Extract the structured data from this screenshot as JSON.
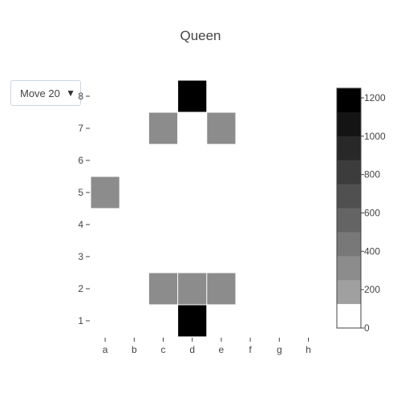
{
  "title": "Queen",
  "menu": {
    "selected": "Move 20",
    "arrow_icon": "triangle-down-icon"
  },
  "chart_data": {
    "type": "heatmap",
    "title": "Queen",
    "x": [
      "a",
      "b",
      "c",
      "d",
      "e",
      "f",
      "g",
      "h"
    ],
    "y": [
      "1",
      "2",
      "3",
      "4",
      "5",
      "6",
      "7",
      "8"
    ],
    "z": [
      [
        0,
        0,
        0,
        1250,
        0,
        0,
        0,
        0
      ],
      [
        0,
        0,
        230,
        230,
        230,
        0,
        0,
        0
      ],
      [
        0,
        0,
        0,
        0,
        0,
        0,
        0,
        0
      ],
      [
        0,
        0,
        0,
        0,
        0,
        0,
        0,
        0
      ],
      [
        230,
        0,
        0,
        0,
        0,
        0,
        0,
        0
      ],
      [
        0,
        0,
        0,
        0,
        0,
        0,
        0,
        0
      ],
      [
        0,
        0,
        230,
        0,
        230,
        0,
        0,
        0
      ],
      [
        0,
        0,
        0,
        1250,
        0,
        0,
        0,
        0
      ]
    ],
    "colorbar": {
      "min": 0,
      "max": 1250,
      "ticks": [
        0,
        200,
        400,
        600,
        800,
        1000,
        1200
      ]
    },
    "colorscale": [
      "#ffffff",
      "#a0a0a0",
      "#8c8c8c",
      "#787878",
      "#646464",
      "#505050",
      "#3c3c3c",
      "#282828",
      "#141414",
      "#000000"
    ],
    "grid": false
  }
}
